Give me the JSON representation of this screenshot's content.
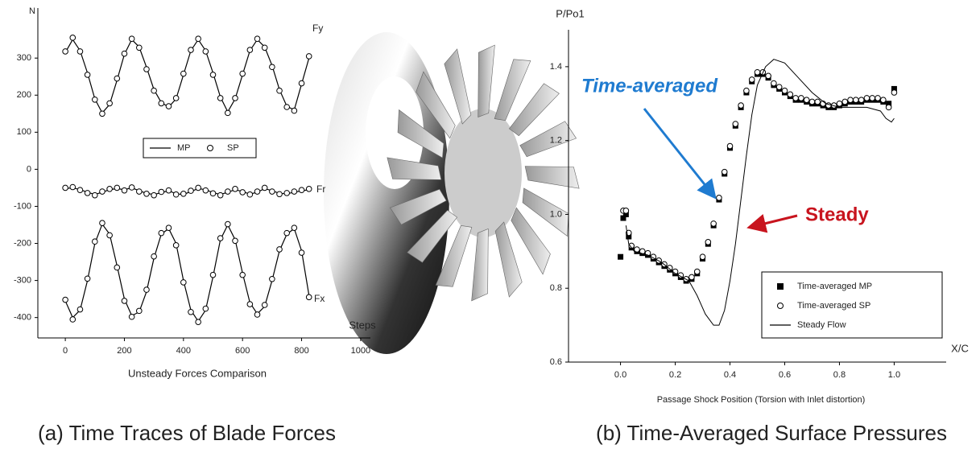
{
  "chart_data": [
    {
      "type": "line",
      "ylabel": "N",
      "xlabel": "Steps",
      "title": "Unsteady Forces Comparison",
      "caption": "(a) Time Traces of Blade Forces",
      "xlim": [
        -93,
        1033
      ],
      "ylim": [
        -455,
        435
      ],
      "xticks": [
        0,
        200,
        400,
        600,
        800,
        1000
      ],
      "yticks": [
        300,
        200,
        100,
        0,
        -100,
        -200,
        -300,
        -400
      ],
      "legend_position": "center",
      "series": [
        {
          "name": "MP",
          "marker": "line",
          "color": "#000000"
        },
        {
          "name": "SP",
          "marker": "circle",
          "color": "#000000"
        }
      ],
      "x": [
        0,
        25,
        50,
        75,
        100,
        125,
        150,
        175,
        200,
        225,
        250,
        275,
        300,
        325,
        350,
        375,
        400,
        425,
        450,
        475,
        500,
        525,
        550,
        575,
        600,
        625,
        650,
        675,
        700,
        725,
        750,
        775,
        800,
        825
      ],
      "curves": [
        {
          "label": "Fy",
          "mp": [
            315,
            350,
            320,
            260,
            190,
            152,
            175,
            240,
            310,
            350,
            330,
            275,
            215,
            180,
            168,
            190,
            255,
            320,
            350,
            320,
            260,
            195,
            155,
            190,
            255,
            320,
            350,
            330,
            280,
            215,
            170,
            160,
            230,
            300
          ],
          "sp": [
            318,
            355,
            318,
            255,
            188,
            150,
            178,
            245,
            312,
            352,
            328,
            270,
            212,
            178,
            170,
            192,
            258,
            322,
            352,
            318,
            255,
            192,
            152,
            192,
            258,
            322,
            352,
            328,
            276,
            212,
            168,
            158,
            232,
            305
          ]
        },
        {
          "label": "Fr",
          "mp": [
            -52,
            -50,
            -55,
            -62,
            -68,
            -62,
            -55,
            -52,
            -55,
            -50,
            -58,
            -65,
            -68,
            -63,
            -58,
            -66,
            -68,
            -60,
            -52,
            -55,
            -63,
            -68,
            -62,
            -55,
            -60,
            -67,
            -62,
            -52,
            -58,
            -65,
            -66,
            -62,
            -58,
            -55
          ],
          "sp": [
            -50,
            -48,
            -56,
            -64,
            -70,
            -60,
            -53,
            -50,
            -57,
            -49,
            -60,
            -66,
            -70,
            -61,
            -57,
            -68,
            -66,
            -58,
            -50,
            -57,
            -65,
            -70,
            -60,
            -53,
            -62,
            -68,
            -60,
            -50,
            -60,
            -67,
            -64,
            -60,
            -56,
            -53
          ]
        },
        {
          "label": "Fx",
          "mp": [
            -355,
            -400,
            -380,
            -300,
            -200,
            -148,
            -175,
            -260,
            -350,
            -395,
            -385,
            -330,
            -240,
            -175,
            -160,
            -200,
            -300,
            -380,
            -410,
            -380,
            -290,
            -190,
            -150,
            -190,
            -280,
            -360,
            -390,
            -370,
            -300,
            -220,
            -175,
            -160,
            -220,
            -340
          ],
          "sp": [
            -352,
            -405,
            -378,
            -295,
            -195,
            -145,
            -178,
            -265,
            -355,
            -398,
            -382,
            -325,
            -235,
            -172,
            -158,
            -205,
            -305,
            -385,
            -412,
            -376,
            -285,
            -186,
            -148,
            -193,
            -285,
            -364,
            -392,
            -366,
            -296,
            -216,
            -172,
            -158,
            -225,
            -345
          ]
        }
      ]
    },
    {
      "type": "scatter",
      "ylabel": "P/Po1",
      "xlabel": "X/C",
      "title": "Passage Shock Position (Torsion with Inlet distortion)",
      "caption": "(b) Time-Averaged Surface Pressures",
      "annotations": [
        {
          "text": "Time-averaged",
          "color": "#1f7bd0"
        },
        {
          "text": "Steady",
          "color": "#c8141e"
        }
      ],
      "xlim": [
        -0.19,
        1.19
      ],
      "ylim": [
        0.6,
        1.5
      ],
      "xticks": [
        {
          "value": 0,
          "label": "0.0"
        },
        0.2,
        0.4,
        0.6,
        0.8,
        {
          "value": 1,
          "label": "1.0"
        }
      ],
      "yticks": [
        0.6,
        0.8,
        {
          "value": 1,
          "label": "1.0"
        },
        1.2,
        1.4
      ],
      "legend_position": "lower right",
      "series": [
        {
          "name": "Time-averaged MP",
          "marker": "square",
          "color": "#000000",
          "x": [
            0,
            0.01,
            0.02,
            0.03,
            0.04,
            0.06,
            0.08,
            0.1,
            0.12,
            0.14,
            0.16,
            0.18,
            0.2,
            0.22,
            0.24,
            0.26,
            0.28,
            0.3,
            0.32,
            0.34,
            0.36,
            0.38,
            0.4,
            0.42,
            0.44,
            0.46,
            0.48,
            0.5,
            0.52,
            0.54,
            0.56,
            0.58,
            0.6,
            0.62,
            0.64,
            0.66,
            0.68,
            0.7,
            0.72,
            0.74,
            0.76,
            0.78,
            0.8,
            0.82,
            0.84,
            0.86,
            0.88,
            0.9,
            0.92,
            0.94,
            0.96,
            0.98,
            1
          ],
          "values": [
            0.885,
            0.99,
            1,
            0.94,
            0.91,
            0.9,
            0.895,
            0.89,
            0.88,
            0.87,
            0.86,
            0.85,
            0.84,
            0.83,
            0.82,
            0.825,
            0.84,
            0.88,
            0.92,
            0.97,
            1.04,
            1.11,
            1.18,
            1.24,
            1.29,
            1.33,
            1.36,
            1.38,
            1.38,
            1.37,
            1.35,
            1.34,
            1.33,
            1.32,
            1.31,
            1.31,
            1.305,
            1.3,
            1.3,
            1.295,
            1.29,
            1.29,
            1.295,
            1.3,
            1.305,
            1.305,
            1.305,
            1.31,
            1.31,
            1.31,
            1.305,
            1.3,
            1.34
          ]
        },
        {
          "name": "Time-averaged SP",
          "marker": "circle",
          "color": "#000000",
          "x": [
            0.01,
            0.02,
            0.03,
            0.04,
            0.06,
            0.08,
            0.1,
            0.12,
            0.14,
            0.16,
            0.18,
            0.2,
            0.22,
            0.24,
            0.26,
            0.28,
            0.3,
            0.32,
            0.34,
            0.36,
            0.38,
            0.4,
            0.42,
            0.44,
            0.46,
            0.48,
            0.5,
            0.52,
            0.54,
            0.56,
            0.58,
            0.6,
            0.62,
            0.64,
            0.66,
            0.68,
            0.7,
            0.72,
            0.74,
            0.76,
            0.78,
            0.8,
            0.82,
            0.84,
            0.86,
            0.88,
            0.9,
            0.92,
            0.94,
            0.96,
            0.98,
            1
          ],
          "values": [
            1.01,
            1.01,
            0.95,
            0.915,
            0.905,
            0.9,
            0.895,
            0.885,
            0.875,
            0.865,
            0.855,
            0.845,
            0.835,
            0.825,
            0.83,
            0.845,
            0.885,
            0.925,
            0.975,
            1.045,
            1.115,
            1.185,
            1.245,
            1.295,
            1.335,
            1.365,
            1.385,
            1.385,
            1.375,
            1.355,
            1.345,
            1.335,
            1.325,
            1.315,
            1.315,
            1.31,
            1.305,
            1.305,
            1.3,
            1.295,
            1.295,
            1.3,
            1.305,
            1.31,
            1.31,
            1.31,
            1.315,
            1.315,
            1.315,
            1.31,
            1.29,
            1.33
          ]
        },
        {
          "name": "Steady Flow",
          "marker": "line",
          "color": "#000000",
          "x": [
            0.02,
            0.03,
            0.05,
            0.1,
            0.15,
            0.2,
            0.25,
            0.28,
            0.31,
            0.34,
            0.36,
            0.38,
            0.4,
            0.42,
            0.44,
            0.46,
            0.48,
            0.5,
            0.53,
            0.56,
            0.6,
            0.65,
            0.7,
            0.75,
            0.8,
            0.85,
            0.9,
            0.95,
            0.97,
            0.99,
            1
          ],
          "values": [
            0.97,
            0.92,
            0.9,
            0.89,
            0.87,
            0.84,
            0.82,
            0.78,
            0.73,
            0.7,
            0.7,
            0.74,
            0.82,
            0.92,
            1.04,
            1.16,
            1.27,
            1.35,
            1.4,
            1.42,
            1.41,
            1.37,
            1.33,
            1.3,
            1.29,
            1.29,
            1.29,
            1.28,
            1.26,
            1.25,
            1.26
          ]
        }
      ]
    }
  ]
}
